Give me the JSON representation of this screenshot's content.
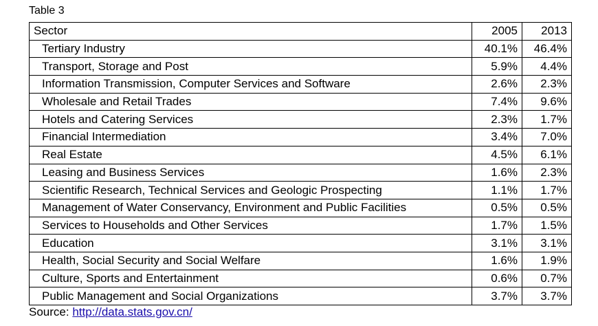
{
  "caption": "Table 3",
  "headers": {
    "sector": "Sector",
    "y2005": "2005",
    "y2013": "2013"
  },
  "rows": [
    {
      "sector": "Tertiary Industry",
      "y2005": "40.1%",
      "y2013": "46.4%"
    },
    {
      "sector": "Transport, Storage and Post",
      "y2005": "5.9%",
      "y2013": "4.4%"
    },
    {
      "sector": "Information Transmission, Computer Services and Software",
      "y2005": "2.6%",
      "y2013": "2.3%"
    },
    {
      "sector": "Wholesale and Retail Trades",
      "y2005": "7.4%",
      "y2013": "9.6%"
    },
    {
      "sector": "Hotels and Catering Services",
      "y2005": "2.3%",
      "y2013": "1.7%"
    },
    {
      "sector": "Financial Intermediation",
      "y2005": "3.4%",
      "y2013": "7.0%"
    },
    {
      "sector": "Real Estate",
      "y2005": "4.5%",
      "y2013": "6.1%"
    },
    {
      "sector": "Leasing and Business Services",
      "y2005": "1.6%",
      "y2013": "2.3%"
    },
    {
      "sector": "Scientific Research, Technical Services and Geologic Prospecting",
      "y2005": "1.1%",
      "y2013": "1.7%"
    },
    {
      "sector": "Management of Water Conservancy, Environment and Public Facilities",
      "y2005": "0.5%",
      "y2013": "0.5%"
    },
    {
      "sector": "Services to Households and Other Services",
      "y2005": "1.7%",
      "y2013": "1.5%"
    },
    {
      "sector": "Education",
      "y2005": "3.1%",
      "y2013": "3.1%"
    },
    {
      "sector": "Health, Social Security and Social Welfare",
      "y2005": "1.6%",
      "y2013": "1.9%"
    },
    {
      "sector": "Culture, Sports and Entertainment",
      "y2005": "0.6%",
      "y2013": "0.7%"
    },
    {
      "sector": "Public Management and Social Organizations",
      "y2005": "3.7%",
      "y2013": "3.7%"
    }
  ],
  "source": {
    "label": "Source: ",
    "link_text": "http://data.stats.gov.cn/",
    "link_color": "#1a0dab"
  }
}
